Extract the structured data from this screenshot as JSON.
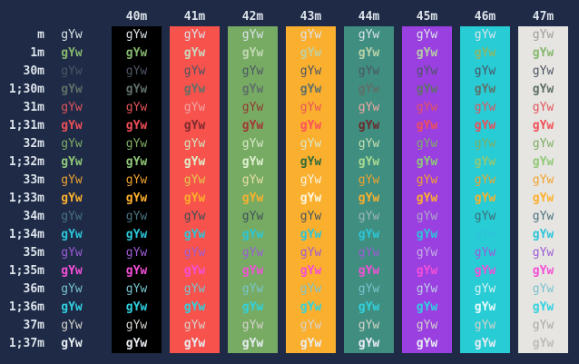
{
  "terminal": {
    "description": "ANSI terminal color test grid",
    "cell_text": "gYw",
    "page_bg": "#1e2a46",
    "label_color": "#dce3ea",
    "columns": [
      {
        "label": "40m",
        "bg": "#000000"
      },
      {
        "label": "41m",
        "bg": "#f7524b"
      },
      {
        "label": "42m",
        "bg": "#77ab63"
      },
      {
        "label": "43m",
        "bg": "#fbaf2e"
      },
      {
        "label": "44m",
        "bg": "#3f8e7f"
      },
      {
        "label": "45m",
        "bg": "#9a40e0"
      },
      {
        "label": "46m",
        "bg": "#27ccd5"
      },
      {
        "label": "47m",
        "bg": "#e7e5e1"
      }
    ],
    "rows": [
      {
        "label": "m",
        "fg": "#dce3ea",
        "bold": false
      },
      {
        "label": "1m",
        "fg": "#86b86f",
        "bold": true
      },
      {
        "label": "30m",
        "fg": "#4c5564",
        "bold": false
      },
      {
        "label": "1;30m",
        "fg": "#5f7068",
        "bold": true
      },
      {
        "label": "31m",
        "fg": "#e4545c",
        "bold": false
      },
      {
        "label": "1;31m",
        "fg": "#f04e58",
        "bold": true
      },
      {
        "label": "32m",
        "fg": "#7ead66",
        "bold": false
      },
      {
        "label": "1;32m",
        "fg": "#90c878",
        "bold": true
      },
      {
        "label": "33m",
        "fg": "#f0a32f",
        "bold": false
      },
      {
        "label": "1;33m",
        "fg": "#fcb02d",
        "bold": true
      },
      {
        "label": "34m",
        "fg": "#4a7280",
        "bold": false
      },
      {
        "label": "1;34m",
        "fg": "#2cc6d8",
        "bold": true
      },
      {
        "label": "35m",
        "fg": "#9d5cd6",
        "bold": false
      },
      {
        "label": "1;35m",
        "fg": "#f44fd8",
        "bold": true
      },
      {
        "label": "36m",
        "fg": "#79c3ce",
        "bold": false
      },
      {
        "label": "1;36m",
        "fg": "#30d2e0",
        "bold": true
      },
      {
        "label": "37m",
        "fg": "#d6d3cc",
        "bold": false
      },
      {
        "label": "1;37m",
        "fg": "#e9edf3",
        "bold": true
      }
    ],
    "min_contrast_overrides": {
      "41m": {
        "1m": "#ccd8c0",
        "31m": "#f2a4a6",
        "1;31m": "#7c2b30",
        "32m": "#d2e4c0",
        "1;32m": "#dcefcb",
        "33m": "#e5c94e",
        "34m": "#3d4f58"
      },
      "42m": {
        "1m": "#c2d8b4",
        "31m": "#953732",
        "1;31m": "#a33636",
        "32m": "#d6ebc6",
        "1;32m": "#e0f3d1",
        "33m": "#e7dfa2",
        "34m": "#3f5159"
      },
      "43m": {
        "1m": "#c0d0a0",
        "1;31m": "#fb4f5d",
        "32m": "#d9e8c6",
        "1;32m": "#2f6b3a",
        "33m": "#f8f2de",
        "1;33m": "#fdf8e2",
        "34m": "#44585f"
      },
      "44m": {
        "1m": "#b9d2aa",
        "31m": "#f2a6a4",
        "1;31m": "#6d2a2c",
        "32m": "#c6e0b2",
        "1;32m": "#a9da90",
        "34m": "#9fb5bb"
      },
      "45m": {
        "1m": "#b4cfa4",
        "34m": "#aea6c6",
        "35m": "#c4aee2",
        "36m": "#bccde4"
      },
      "46m": {
        "34m": "#3f6d77",
        "36m": "#d8f3f3",
        "1;36m": "#e9fbfb"
      },
      "47m": {
        "m": "#9d9d9a",
        "37m": "#a9a9a6",
        "1;37m": "#bcbcb9"
      }
    }
  }
}
